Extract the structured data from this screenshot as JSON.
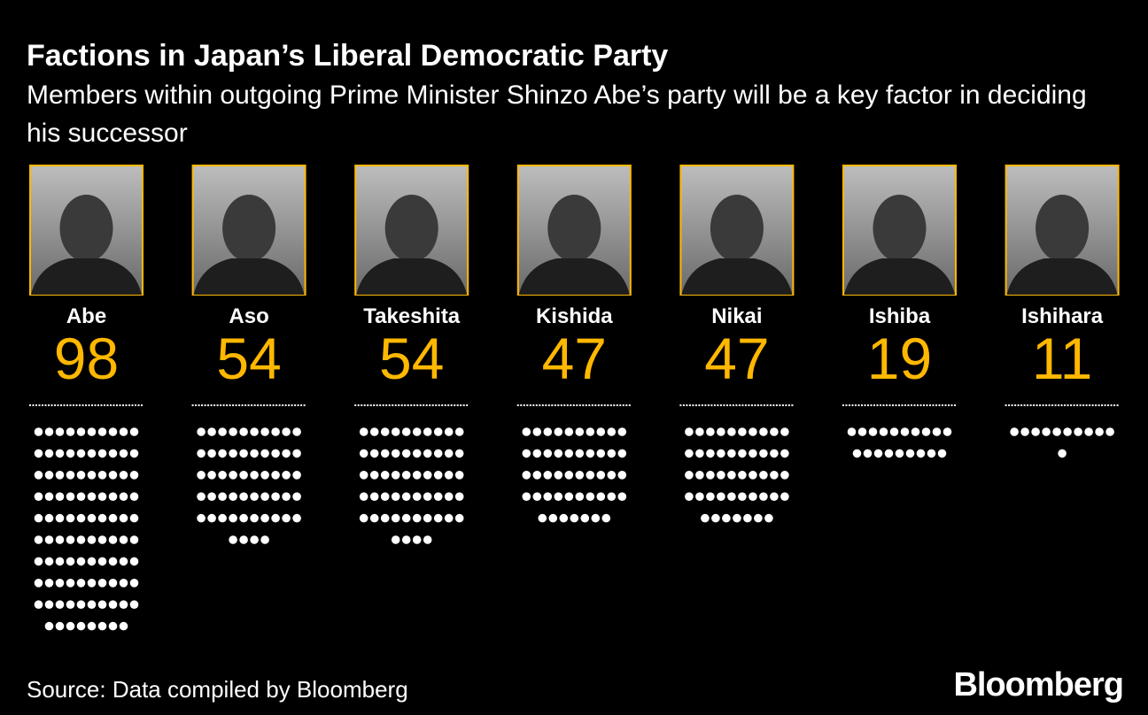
{
  "chart_data": {
    "type": "unit",
    "title": "Factions in Japan’s Liberal Democratic Party",
    "subtitle": "Members within outgoing Prime Minister Shinzo Abe’s party will be a key factor in deciding his successor",
    "categories": [
      "Abe",
      "Aso",
      "Takeshita",
      "Kishida",
      "Nikai",
      "Ishiba",
      "Ishihara"
    ],
    "values": [
      98,
      54,
      54,
      47,
      47,
      19,
      11
    ],
    "color": "#ffb800",
    "dot_color": "#ffffff",
    "source": "Source: Data compiled by Bloomberg",
    "logo": "Bloomberg"
  }
}
